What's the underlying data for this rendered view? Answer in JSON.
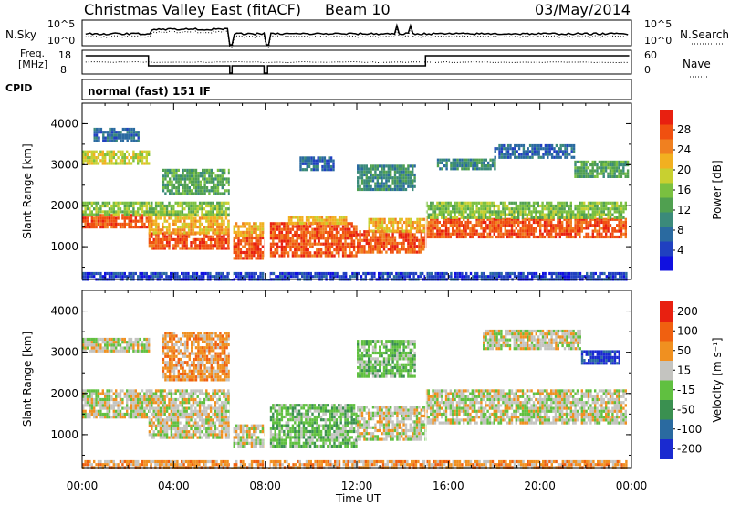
{
  "header": {
    "station": "Christmas Valley East (fitACF)",
    "beam": "Beam 10",
    "date": "03/May/2014"
  },
  "top_panels": {
    "nsky_label": "N.Sky",
    "nsearch_label": "N.Search",
    "noise_ticks_left": [
      "10^5",
      "10^0"
    ],
    "noise_ticks_right": [
      "10^5",
      "10^0"
    ],
    "freq_label": [
      "Freq.",
      "[MHz]"
    ],
    "freq_ticks": [
      "18",
      "8"
    ],
    "nave_label": "Nave",
    "nave_ticks": [
      "60",
      "0"
    ],
    "cpid_label": "CPID",
    "cpid_text": "normal (fast) 151 IF"
  },
  "chart_data": [
    {
      "type": "heatmap",
      "name": "power",
      "ylabel": "Slant Range [km]",
      "xlabel": "Time UT",
      "xlim": [
        0,
        24
      ],
      "ylim": [
        200,
        4500
      ],
      "yticks": [
        "1000",
        "2000",
        "3000",
        "4000"
      ],
      "xticks": [
        "00:00",
        "04:00",
        "08:00",
        "12:00",
        "16:00",
        "20:00",
        "00:00"
      ],
      "colorbar": {
        "label": "Power [dB]",
        "ticks": [
          "4",
          "8",
          "12",
          "16",
          "20",
          "24",
          "28"
        ],
        "colors": [
          "#1010e0",
          "#2040c0",
          "#2a6aa0",
          "#3b8a7a",
          "#50a050",
          "#7ac040",
          "#c8d030",
          "#f2b020",
          "#f08020",
          "#f05010",
          "#e82010"
        ]
      },
      "bands": [
        {
          "t0": 0.0,
          "t1": 2.9,
          "r0": 1450,
          "r1": 1800,
          "level": 9
        },
        {
          "t0": 0.0,
          "t1": 2.9,
          "r0": 1800,
          "r1": 2100,
          "level": 5
        },
        {
          "t0": 0.0,
          "t1": 2.9,
          "r0": 3050,
          "r1": 3350,
          "level": 6
        },
        {
          "t0": 0.5,
          "t1": 2.5,
          "r0": 3600,
          "r1": 3900,
          "level": 2
        },
        {
          "t0": 2.9,
          "t1": 6.5,
          "r0": 950,
          "r1": 1350,
          "level": 9
        },
        {
          "t0": 2.9,
          "t1": 6.5,
          "r0": 1350,
          "r1": 1800,
          "level": 7
        },
        {
          "t0": 2.9,
          "t1": 6.5,
          "r0": 1800,
          "r1": 2100,
          "level": 5
        },
        {
          "t0": 6.6,
          "t1": 8.0,
          "r0": 750,
          "r1": 1250,
          "level": 9
        },
        {
          "t0": 6.6,
          "t1": 8.0,
          "r0": 1250,
          "r1": 1600,
          "level": 7
        },
        {
          "t0": 8.2,
          "t1": 12.0,
          "r0": 800,
          "r1": 1600,
          "level": 9
        },
        {
          "t0": 9.0,
          "t1": 11.5,
          "r0": 1600,
          "r1": 1750,
          "level": 7
        },
        {
          "t0": 12.0,
          "t1": 15.0,
          "r0": 850,
          "r1": 1400,
          "level": 9
        },
        {
          "t0": 12.5,
          "t1": 15.0,
          "r0": 1400,
          "r1": 1700,
          "level": 7
        },
        {
          "t0": 15.0,
          "t1": 23.8,
          "r0": 1250,
          "r1": 1700,
          "level": 9
        },
        {
          "t0": 15.0,
          "t1": 23.8,
          "r0": 1700,
          "r1": 2100,
          "level": 5
        },
        {
          "t0": 18.0,
          "t1": 21.5,
          "r0": 3200,
          "r1": 3500,
          "level": 2
        },
        {
          "t0": 21.5,
          "t1": 23.8,
          "r0": 2700,
          "r1": 3100,
          "level": 4
        },
        {
          "t0": 15.5,
          "t1": 18.0,
          "r0": 2900,
          "r1": 3150,
          "level": 3
        },
        {
          "t0": 12.0,
          "t1": 14.5,
          "r0": 2400,
          "r1": 3000,
          "level": 3
        },
        {
          "t0": 3.5,
          "t1": 6.5,
          "r0": 2300,
          "r1": 2900,
          "level": 4
        },
        {
          "t0": 9.5,
          "t1": 11.0,
          "r0": 2900,
          "r1": 3200,
          "level": 2
        },
        {
          "t0": 0.0,
          "t1": 23.8,
          "r0": 200,
          "r1": 380,
          "level": 1
        }
      ]
    },
    {
      "type": "heatmap",
      "name": "velocity",
      "ylabel": "Slant Range [km]",
      "xlabel": "Time UT",
      "xlim": [
        0,
        24
      ],
      "ylim": [
        200,
        4500
      ],
      "yticks": [
        "1000",
        "2000",
        "3000",
        "4000"
      ],
      "xticks": [
        "00:00",
        "04:00",
        "08:00",
        "12:00",
        "16:00",
        "20:00",
        "00:00"
      ],
      "colorbar": {
        "label": "Velocity [m s⁻¹]",
        "ticks": [
          "200",
          "100",
          "50",
          "15",
          "-15",
          "-50",
          "-100",
          "-200"
        ],
        "colors": [
          "#1a2ad0",
          "#2a6aa0",
          "#3a9050",
          "#60c040",
          "#c4c4c0",
          "#f09020",
          "#f06010",
          "#e82010"
        ]
      },
      "bands": [
        {
          "t0": 0.0,
          "t1": 2.9,
          "r0": 1450,
          "r1": 2100,
          "level": 4
        },
        {
          "t0": 0.0,
          "t1": 2.9,
          "r0": 3050,
          "r1": 3350,
          "level": 4
        },
        {
          "t0": 2.9,
          "t1": 6.5,
          "r0": 950,
          "r1": 2100,
          "level": 4
        },
        {
          "t0": 3.5,
          "t1": 6.5,
          "r0": 2300,
          "r1": 3500,
          "level": 5
        },
        {
          "t0": 6.6,
          "t1": 8.0,
          "r0": 750,
          "r1": 1250,
          "level": 4
        },
        {
          "t0": 8.2,
          "t1": 12.0,
          "r0": 750,
          "r1": 1750,
          "level": 3
        },
        {
          "t0": 12.0,
          "t1": 15.0,
          "r0": 850,
          "r1": 1700,
          "level": 4
        },
        {
          "t0": 12.0,
          "t1": 14.5,
          "r0": 2400,
          "r1": 3300,
          "level": 3
        },
        {
          "t0": 15.0,
          "t1": 23.8,
          "r0": 1250,
          "r1": 2100,
          "level": 4
        },
        {
          "t0": 17.5,
          "t1": 21.8,
          "r0": 3100,
          "r1": 3550,
          "level": 4
        },
        {
          "t0": 21.8,
          "t1": 23.5,
          "r0": 2700,
          "r1": 3050,
          "level": 0
        },
        {
          "t0": 0.0,
          "t1": 23.8,
          "r0": 200,
          "r1": 380,
          "level": 5
        }
      ]
    }
  ]
}
